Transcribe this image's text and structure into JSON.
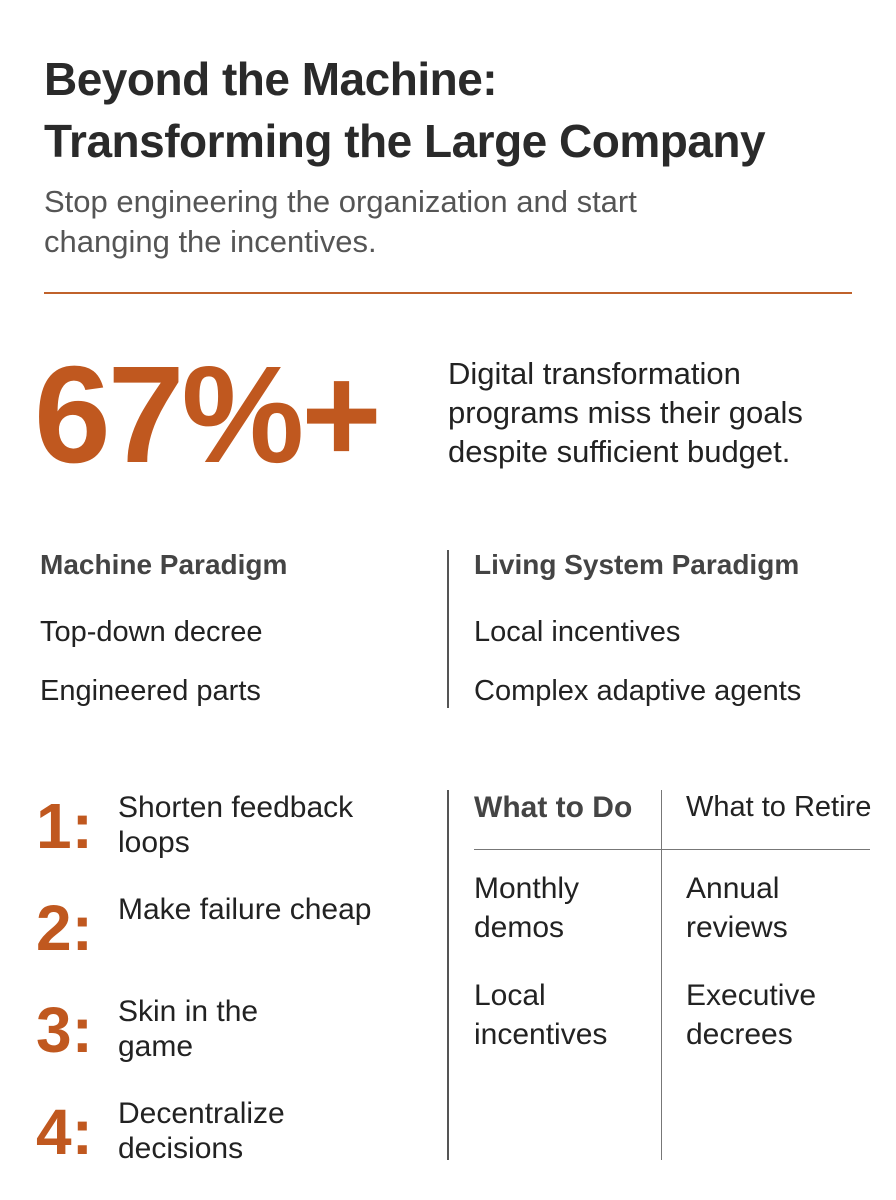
{
  "header": {
    "title": [
      "Beyond the Machine:",
      "Transforming the Large Company"
    ],
    "subtitle": "Stop engineering the organization and start changing the incentives."
  },
  "stat": {
    "value": "67%+",
    "description": "Digital transformation programs miss their goals despite sufficient budget."
  },
  "paradigms": [
    {
      "heading": "Machine Paradigm",
      "items": [
        "Top-down decree",
        "Engineered parts"
      ]
    },
    {
      "heading": "Living System Paradigm",
      "items": [
        "Local incentives",
        "Complex adaptive agents"
      ]
    }
  ],
  "steps": [
    {
      "number": "1:",
      "text": "Shorten feedback loops"
    },
    {
      "number": "2:",
      "text": "Make failure cheap"
    },
    {
      "number": "3:",
      "text": "Skin in the game"
    },
    {
      "number": "4:",
      "text": "Decentralize decisions"
    }
  ],
  "table": {
    "headers": [
      "What to Do",
      "What to Retire"
    ],
    "rows": [
      [
        "Monthly demos",
        "Annual reviews"
      ],
      [
        "Local incentives",
        "Executive decrees"
      ]
    ]
  }
}
